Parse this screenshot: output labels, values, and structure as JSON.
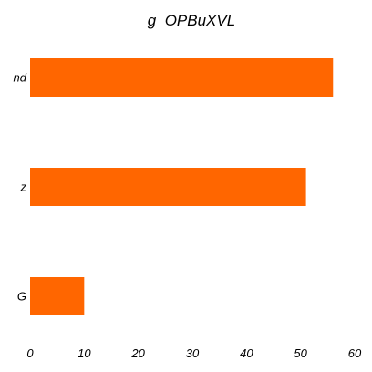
{
  "chart_data": {
    "type": "bar",
    "orientation": "horizontal",
    "title": "g  OPBuXVL",
    "categories": [
      "nd",
      "z",
      "G"
    ],
    "values": [
      56,
      51,
      10
    ],
    "xlim": [
      0,
      60
    ],
    "xticks": [
      0,
      10,
      20,
      30,
      40,
      50,
      60
    ],
    "xlabel": "",
    "ylabel": "",
    "grid": false,
    "legend": "none",
    "bar_color": "#ff6600"
  }
}
